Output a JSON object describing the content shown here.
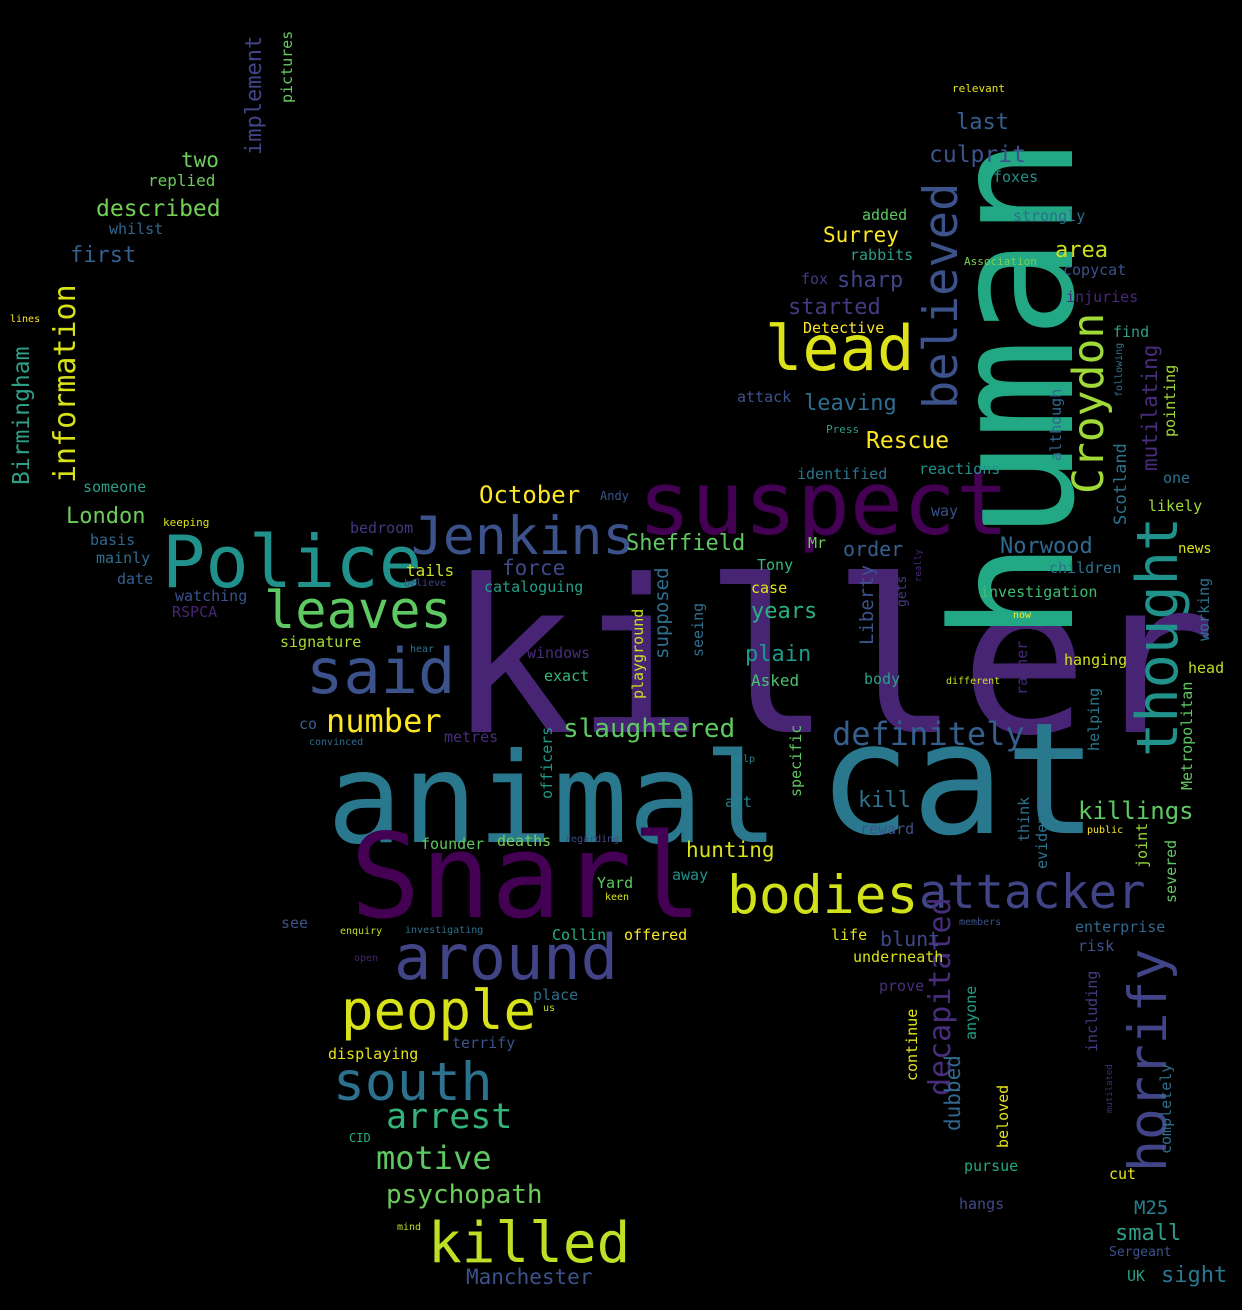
{
  "words": [
    {
      "text": "killer",
      "color": "#482475"
    },
    {
      "text": "animal",
      "color": "#2a788e"
    },
    {
      "text": "cat",
      "color": "#2a788e"
    },
    {
      "text": "human",
      "color": "#22a884"
    },
    {
      "text": "Snarl",
      "color": "#440154"
    },
    {
      "text": "suspect",
      "color": "#440154"
    },
    {
      "text": "Police",
      "color": "#21918c"
    },
    {
      "text": "lead",
      "color": "#dde318"
    },
    {
      "text": "Jenkins",
      "color": "#3b528b"
    },
    {
      "text": "leaves",
      "color": "#5ec962"
    },
    {
      "text": "said",
      "color": "#3b528b"
    },
    {
      "text": "thought",
      "color": "#21918c"
    },
    {
      "text": "believed",
      "color": "#3b528b"
    },
    {
      "text": "Croydon",
      "color": "#a0da39"
    },
    {
      "text": "horrify",
      "color": "#414487"
    },
    {
      "text": "attacker",
      "color": "#414487"
    },
    {
      "text": "bodies",
      "color": "#d0e11c"
    },
    {
      "text": "around",
      "color": "#414487"
    },
    {
      "text": "people",
      "color": "#d8e219"
    },
    {
      "text": "south",
      "color": "#2c728e"
    },
    {
      "text": "killed",
      "color": "#bddf26"
    },
    {
      "text": "information",
      "color": "#d8e219"
    },
    {
      "text": "Birmingham",
      "color": "#2e9e87"
    },
    {
      "text": "definitely",
      "color": "#355f8d"
    },
    {
      "text": "decapitated",
      "color": "#472d7b"
    },
    {
      "text": "arrest",
      "color": "#33b47b"
    },
    {
      "text": "motive",
      "color": "#5ec962"
    },
    {
      "text": "number",
      "color": "#fde725"
    },
    {
      "text": "slaughtered",
      "color": "#5ec962"
    },
    {
      "text": "psychopath",
      "color": "#6ccd5a"
    },
    {
      "text": "October",
      "color": "#fde725"
    },
    {
      "text": "Sheffield",
      "color": "#5ec962"
    },
    {
      "text": "London",
      "color": "#6ccd5a"
    },
    {
      "text": "killings",
      "color": "#5ec962"
    },
    {
      "text": "mutilating",
      "color": "#472d7b"
    },
    {
      "text": "Scotland",
      "color": "#2c728e"
    },
    {
      "text": "Norwood",
      "color": "#31688e"
    },
    {
      "text": "Rescue",
      "color": "#fde725"
    },
    {
      "text": "leaving",
      "color": "#2e6e8e"
    },
    {
      "text": "started",
      "color": "#443983"
    },
    {
      "text": "sharp",
      "color": "#414487"
    },
    {
      "text": "Surrey",
      "color": "#fde725"
    },
    {
      "text": "area",
      "color": "#cae11f"
    },
    {
      "text": "last",
      "color": "#355f8d"
    },
    {
      "text": "culprit",
      "color": "#3b528b"
    },
    {
      "text": "implement",
      "color": "#414487"
    },
    {
      "text": "pictures",
      "color": "#65cb5e"
    },
    {
      "text": "two",
      "color": "#6ccd5a"
    },
    {
      "text": "described",
      "color": "#73d056"
    },
    {
      "text": "replied",
      "color": "#6ccd5a"
    },
    {
      "text": "whilst",
      "color": "#31688e"
    },
    {
      "text": "first",
      "color": "#355f8d"
    },
    {
      "text": "lines",
      "color": "#fde725"
    },
    {
      "text": "someone",
      "color": "#2e9e87"
    },
    {
      "text": "keeping",
      "color": "#dde318"
    },
    {
      "text": "basis",
      "color": "#31688e"
    },
    {
      "text": "mainly",
      "color": "#2e6e8e"
    },
    {
      "text": "date",
      "color": "#355f8d"
    },
    {
      "text": "watching",
      "color": "#3b528b"
    },
    {
      "text": "RSPCA",
      "color": "#482475"
    },
    {
      "text": "bedroom",
      "color": "#453781"
    },
    {
      "text": "tails",
      "color": "#cae11f"
    },
    {
      "text": "believe",
      "color": "#414487"
    },
    {
      "text": "force",
      "color": "#3e4989"
    },
    {
      "text": "cataloguing",
      "color": "#1fa187"
    },
    {
      "text": "supposed",
      "color": "#2e6e8e"
    },
    {
      "text": "order",
      "color": "#355f8d"
    },
    {
      "text": "Liberty",
      "color": "#3b528b"
    },
    {
      "text": "years",
      "color": "#2ab07f"
    },
    {
      "text": "plain",
      "color": "#1f9a8a"
    },
    {
      "text": "Asked",
      "color": "#4ac16d"
    },
    {
      "text": "playground",
      "color": "#c8e020"
    },
    {
      "text": "seeing",
      "color": "#2e6e8e"
    },
    {
      "text": "windows",
      "color": "#472d7b"
    },
    {
      "text": "exact",
      "color": "#35b779"
    },
    {
      "text": "signature",
      "color": "#a5db36"
    },
    {
      "text": "hear",
      "color": "#2c728e"
    },
    {
      "text": "co",
      "color": "#355f8d"
    },
    {
      "text": "convinced",
      "color": "#2e6e8e"
    },
    {
      "text": "metres",
      "color": "#472d7b"
    },
    {
      "text": "officers",
      "color": "#1f9a8a"
    },
    {
      "text": "Tony",
      "color": "#35b779"
    },
    {
      "text": "case",
      "color": "#e5e419"
    },
    {
      "text": "Mr",
      "color": "#6ccd5a"
    },
    {
      "text": "gets",
      "color": "#443983"
    },
    {
      "text": "really",
      "color": "#472d7b"
    },
    {
      "text": "children",
      "color": "#2c728e"
    },
    {
      "text": "investigation",
      "color": "#3fbc73"
    },
    {
      "text": "working",
      "color": "#2c728e"
    },
    {
      "text": "now",
      "color": "#fde725"
    },
    {
      "text": "rather",
      "color": "#482878"
    },
    {
      "text": "hanging",
      "color": "#d0e11c"
    },
    {
      "text": "head",
      "color": "#bddf26"
    },
    {
      "text": "body",
      "color": "#2e9e87"
    },
    {
      "text": "different",
      "color": "#cae11f"
    },
    {
      "text": "Metropolitan",
      "color": "#5ec962"
    },
    {
      "text": "helping",
      "color": "#2a788e"
    },
    {
      "text": "kill",
      "color": "#2c728e"
    },
    {
      "text": "reward",
      "color": "#3b528b"
    },
    {
      "text": "act",
      "color": "#25838e"
    },
    {
      "text": "specific",
      "color": "#5ec962"
    },
    {
      "text": "help",
      "color": "#25838e"
    },
    {
      "text": "hunting",
      "color": "#d8e219"
    },
    {
      "text": "founder",
      "color": "#5ec962"
    },
    {
      "text": "deaths",
      "color": "#73d056"
    },
    {
      "text": "regarding",
      "color": "#3e4989"
    },
    {
      "text": "away",
      "color": "#21918c"
    },
    {
      "text": "Yard",
      "color": "#5ec962"
    },
    {
      "text": "keen",
      "color": "#dde318"
    },
    {
      "text": "see",
      "color": "#3b528b"
    },
    {
      "text": "enquiry",
      "color": "#bddf26"
    },
    {
      "text": "investigating",
      "color": "#2c728e"
    },
    {
      "text": "Collin",
      "color": "#2ab07f"
    },
    {
      "text": "offered",
      "color": "#fde725"
    },
    {
      "text": "life",
      "color": "#e5e419"
    },
    {
      "text": "blunt",
      "color": "#3e4989"
    },
    {
      "text": "underneath",
      "color": "#d8e219"
    },
    {
      "text": "members",
      "color": "#3b528b"
    },
    {
      "text": "enterprise",
      "color": "#31688e"
    },
    {
      "text": "risk",
      "color": "#3b528b"
    },
    {
      "text": "think",
      "color": "#2e6e8e"
    },
    {
      "text": "evidence",
      "color": "#2c728e"
    },
    {
      "text": "public",
      "color": "#fde725"
    },
    {
      "text": "joint",
      "color": "#95d840"
    },
    {
      "text": "severed",
      "color": "#5ec962"
    },
    {
      "text": "open",
      "color": "#482475"
    },
    {
      "text": "us",
      "color": "#bddf26"
    },
    {
      "text": "place",
      "color": "#2e6e8e"
    },
    {
      "text": "terrify",
      "color": "#3b528b"
    },
    {
      "text": "displaying",
      "color": "#e5e419"
    },
    {
      "text": "prove",
      "color": "#472d7b"
    },
    {
      "text": "anyone",
      "color": "#1fa187"
    },
    {
      "text": "including",
      "color": "#443983"
    },
    {
      "text": "continue",
      "color": "#e5e419"
    },
    {
      "text": "dubbed",
      "color": "#31688e"
    },
    {
      "text": "beloved",
      "color": "#e5e419"
    },
    {
      "text": "mutilated",
      "color": "#482878"
    },
    {
      "text": "completely",
      "color": "#2e6e8e"
    },
    {
      "text": "CID",
      "color": "#2ab07f"
    },
    {
      "text": "mind",
      "color": "#bddf26"
    },
    {
      "text": "pursue",
      "color": "#22a884"
    },
    {
      "text": "cut",
      "color": "#e5e419"
    },
    {
      "text": "hangs",
      "color": "#3e4989"
    },
    {
      "text": "M25",
      "color": "#277f8e"
    },
    {
      "text": "small",
      "color": "#2e9e87"
    },
    {
      "text": "Sergeant",
      "color": "#3b528b"
    },
    {
      "text": "UK",
      "color": "#1fa187"
    },
    {
      "text": "sight",
      "color": "#2a788e"
    },
    {
      "text": "Manchester",
      "color": "#3b528b"
    },
    {
      "text": "relevant",
      "color": "#e5e419"
    },
    {
      "text": "foxes",
      "color": "#21918c"
    },
    {
      "text": "strongly",
      "color": "#2e6e8e"
    },
    {
      "text": "added",
      "color": "#5ec962"
    },
    {
      "text": "rabbits",
      "color": "#2e9e87"
    },
    {
      "text": "Association",
      "color": "#7ad151"
    },
    {
      "text": "copycat",
      "color": "#3b528b"
    },
    {
      "text": "fox",
      "color": "#443983"
    },
    {
      "text": "injuries",
      "color": "#482878"
    },
    {
      "text": "Detective",
      "color": "#fde725"
    },
    {
      "text": "find",
      "color": "#2e9e87"
    },
    {
      "text": "following",
      "color": "#2c728e"
    },
    {
      "text": "pointing",
      "color": "#a0da39"
    },
    {
      "text": "although",
      "color": "#31688e"
    },
    {
      "text": "attack",
      "color": "#3b528b"
    },
    {
      "text": "Press",
      "color": "#2e9e87"
    },
    {
      "text": "identified",
      "color": "#2c728e"
    },
    {
      "text": "reactions",
      "color": "#21918c"
    },
    {
      "text": "one",
      "color": "#2c728e"
    },
    {
      "text": "likely",
      "color": "#a0da39"
    },
    {
      "text": "way",
      "color": "#3b528b"
    },
    {
      "text": "Andy",
      "color": "#3b528b"
    },
    {
      "text": "news",
      "color": "#d8e219"
    }
  ]
}
